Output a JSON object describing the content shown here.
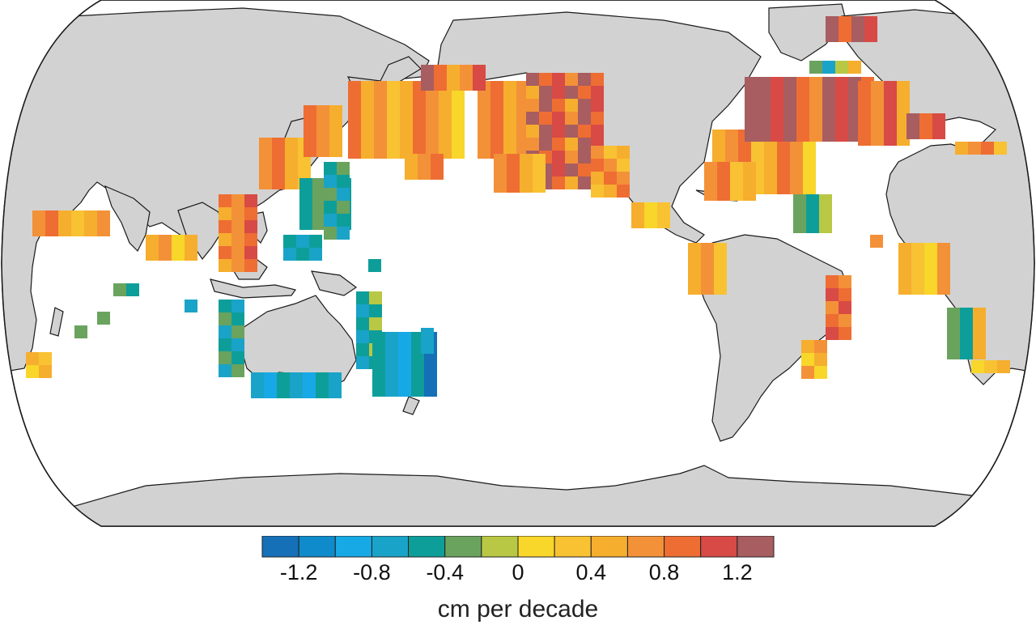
{
  "map": {
    "projection": "Robinson",
    "center_longitude": 180,
    "land_color": "#d2d2d2",
    "ocean_color": "#ffffff",
    "coast_color": "#1a1a1a",
    "data_description": "gridded sea level trend cells; white = no data"
  },
  "colorbar": {
    "units": "cm per decade",
    "tick_labels": [
      "-1.2",
      "-0.8",
      "-0.4",
      "0",
      "0.4",
      "0.8",
      "1.2"
    ],
    "range": [
      -1.4,
      1.4
    ],
    "bins": [
      {
        "from": -1.4,
        "to": -1.2,
        "color": "#1570b8"
      },
      {
        "from": -1.2,
        "to": -1.0,
        "color": "#0f8acb"
      },
      {
        "from": -1.0,
        "to": -0.8,
        "color": "#17a9e6"
      },
      {
        "from": -0.8,
        "to": -0.6,
        "color": "#1aa3c8"
      },
      {
        "from": -0.6,
        "to": -0.4,
        "color": "#0e9e9a"
      },
      {
        "from": -0.4,
        "to": -0.2,
        "color": "#6aa35e"
      },
      {
        "from": -0.2,
        "to": 0.0,
        "color": "#b8c844"
      },
      {
        "from": 0.0,
        "to": 0.2,
        "color": "#f8d62a"
      },
      {
        "from": 0.2,
        "to": 0.4,
        "color": "#f8c233"
      },
      {
        "from": 0.4,
        "to": 0.6,
        "color": "#f6ae2e"
      },
      {
        "from": 0.6,
        "to": 0.8,
        "color": "#f39138"
      },
      {
        "from": 0.8,
        "to": 1.0,
        "color": "#ee6d33"
      },
      {
        "from": 1.0,
        "to": 1.2,
        "color": "#d84a45"
      },
      {
        "from": 1.2,
        "to": 1.4,
        "color": "#a85d60"
      }
    ]
  }
}
